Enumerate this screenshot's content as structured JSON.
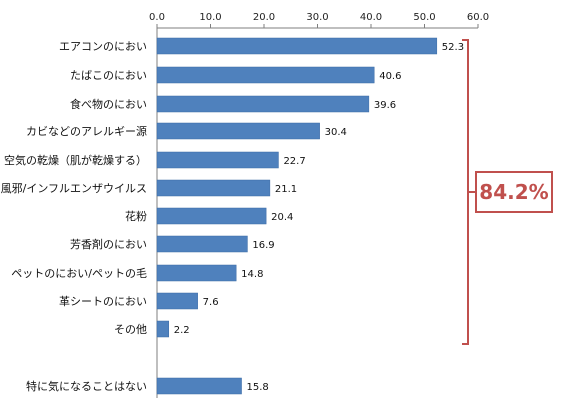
{
  "chart_data": {
    "type": "bar",
    "orientation": "horizontal",
    "xlim": [
      0,
      60
    ],
    "xticks": [
      "0.0",
      "10.0",
      "20.0",
      "30.0",
      "40.0",
      "50.0",
      "60.0"
    ],
    "axis_position": "top",
    "grid": false,
    "categories": [
      "エアコンのにおい",
      "たばこのにおい",
      "食べ物のにおい",
      "カビなどのアレルギー源",
      "空気の乾燥（肌が乾燥する）",
      "風邪/インフルエンザウイルス",
      "花粉",
      "芳香剤のにおい",
      "ペットのにおい/ペットの毛",
      "革シートのにおい",
      "その他",
      "特に気になることはない"
    ],
    "values": [
      52.3,
      40.6,
      39.6,
      30.4,
      22.7,
      21.1,
      20.4,
      16.9,
      14.8,
      7.6,
      2.2,
      15.8
    ],
    "value_labels": [
      "52.3",
      "40.6",
      "39.6",
      "30.4",
      "22.7",
      "21.1",
      "20.4",
      "16.9",
      "14.8",
      "7.6",
      "2.2",
      "15.8"
    ],
    "annotation": {
      "text": "84.2%",
      "brackets_categories": "エアコンのにおい … その他"
    }
  },
  "colors": {
    "bar": "#4f81bd",
    "bar_edge": "#3a6aa5",
    "callout": "#c0504d",
    "axis": "#7f7f7f"
  }
}
